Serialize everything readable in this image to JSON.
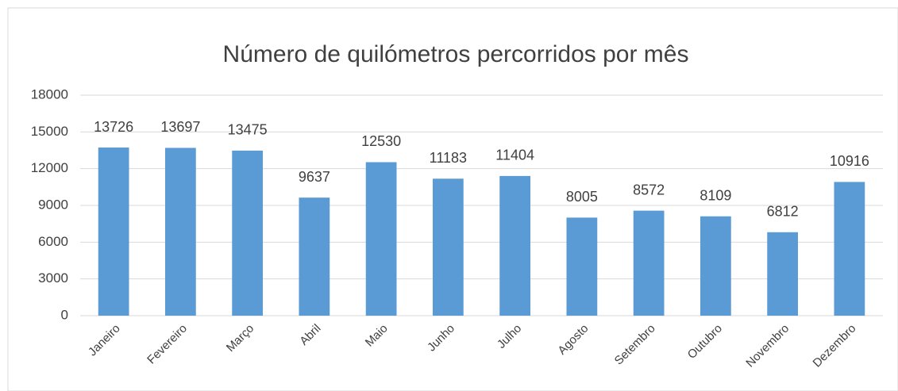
{
  "chart_data": {
    "type": "bar",
    "title": "Número de quilómetros percorridos por mês",
    "categories": [
      "Janeiro",
      "Fevereiro",
      "Março",
      "Abril",
      "Maio",
      "Junho",
      "Julho",
      "Agosto",
      "Setembro",
      "Outubro",
      "Novembro",
      "Dezembro"
    ],
    "values": [
      13726,
      13697,
      13475,
      9637,
      12530,
      11183,
      11404,
      8005,
      8572,
      8109,
      6812,
      10916
    ],
    "color": "#5b9bd5",
    "ylim": [
      0,
      18000
    ],
    "yticks": [
      0,
      3000,
      6000,
      9000,
      12000,
      15000,
      18000
    ],
    "grid": true
  }
}
